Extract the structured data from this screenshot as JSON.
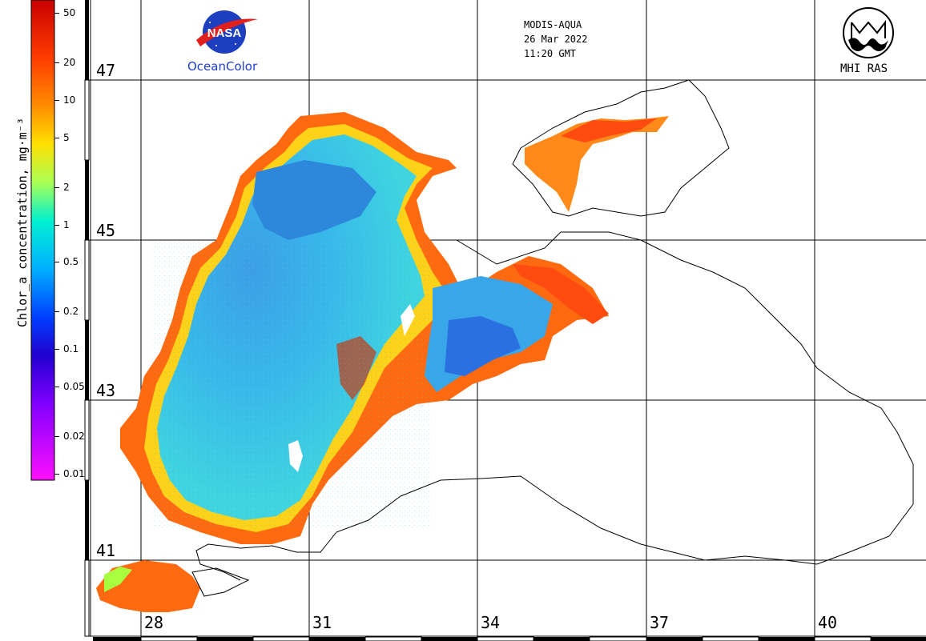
{
  "header": {
    "sensor": "MODIS-AQUA",
    "date": "26 Mar 2022",
    "time": "11:20 GMT"
  },
  "logos": {
    "nasa_text": "NASA",
    "oceancolor_text": "OceanColor",
    "mhi_text": "MHI RAS"
  },
  "colorbar": {
    "title": "Chlor_a concentration, mg·m⁻³",
    "ticks": [
      "50",
      "20",
      "10",
      "5",
      "2",
      "1",
      "0.5",
      "0.2",
      "0.1",
      "0.05",
      "0.02",
      "0.01"
    ],
    "scale": "log",
    "range": [
      0.01,
      50
    ]
  },
  "grid": {
    "latitudes": [
      "47",
      "45",
      "43",
      "41"
    ],
    "longitudes": [
      "28",
      "31",
      "34",
      "37",
      "40"
    ]
  },
  "colors": {
    "low": "#ff00ff",
    "mid": "#00e0e0",
    "high": "#d40000"
  }
}
